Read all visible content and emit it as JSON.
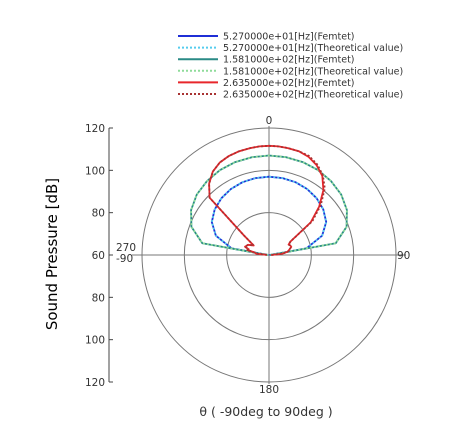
{
  "chart_data": {
    "type": "polar-line",
    "title": "",
    "ylabel": "Sound Pressure [dB]",
    "xlabel": "θ ( -90deg to 90deg )",
    "radial_range": [
      60,
      120
    ],
    "radial_ticks": [
      "120",
      "100",
      "80",
      "60",
      "80",
      "100",
      "120"
    ],
    "radial_circles": [
      80,
      100,
      120
    ],
    "angle_labels": {
      "top": "0",
      "right": "90",
      "bottom": "180",
      "left_top": "270",
      "left_bottom": "-90"
    },
    "grid": true,
    "legend_position": "top-right",
    "series": [
      {
        "name": "5.270000e+01[Hz](Femtet)",
        "color": "#1f2fd6",
        "style": "solid",
        "theta": [
          -90,
          -80,
          -70,
          -60,
          -50,
          -40,
          -30,
          -20,
          -10,
          0,
          10,
          20,
          30,
          40,
          50,
          60,
          70,
          80,
          90
        ],
        "r": [
          60.3,
          77.9,
          86.7,
          91.2,
          93.5,
          95.0,
          96.0,
          96.6,
          96.9,
          97.0,
          96.9,
          96.6,
          96.0,
          95.0,
          93.5,
          91.2,
          86.7,
          77.9,
          60.3
        ]
      },
      {
        "name": "5.270000e+01[Hz](Theoretical value)",
        "color": "#55ccee",
        "style": "dotted",
        "theta": [
          -90,
          -80,
          -70,
          -60,
          -50,
          -40,
          -30,
          -20,
          -10,
          0,
          10,
          20,
          30,
          40,
          50,
          60,
          70,
          80,
          90
        ],
        "r": [
          60.3,
          77.9,
          86.7,
          91.2,
          93.5,
          95.0,
          96.0,
          96.6,
          96.9,
          97.0,
          96.9,
          96.6,
          96.0,
          95.0,
          93.5,
          91.2,
          86.7,
          77.9,
          60.3
        ]
      },
      {
        "name": "1.581000e+02[Hz](Femtet)",
        "color": "#2a8a86",
        "style": "solid",
        "theta": [
          -90,
          -80,
          -70,
          -60,
          -50,
          -40,
          -30,
          -20,
          -10,
          0,
          10,
          20,
          30,
          40,
          50,
          60,
          70,
          80,
          90
        ],
        "r": [
          60.5,
          92.0,
          99.0,
          102.5,
          104.5,
          105.6,
          106.3,
          106.7,
          106.9,
          107.0,
          106.9,
          106.7,
          106.3,
          105.6,
          104.5,
          102.5,
          99.0,
          92.0,
          60.5
        ]
      },
      {
        "name": "1.581000e+02[Hz](Theoretical value)",
        "color": "#8fdc9a",
        "style": "dotted",
        "theta": [
          -90,
          -80,
          -70,
          -60,
          -50,
          -40,
          -30,
          -20,
          -10,
          0,
          10,
          20,
          30,
          40,
          50,
          60,
          70,
          80,
          90
        ],
        "r": [
          60.5,
          92.0,
          99.0,
          102.5,
          104.5,
          105.6,
          106.3,
          106.7,
          106.9,
          107.0,
          106.9,
          106.7,
          106.3,
          105.6,
          104.5,
          102.5,
          99.0,
          92.0,
          60.5
        ]
      },
      {
        "name": "2.635000e+02[Hz](Femtet)",
        "color": "#e8262b",
        "style": "solid",
        "theta": [
          -88,
          -84,
          -80,
          -77,
          -74,
          -71,
          -68,
          -64,
          -58,
          -52,
          -46,
          -40,
          -34,
          -28,
          -22,
          -16,
          -10,
          -5,
          0,
          5,
          10,
          16,
          22,
          28,
          34,
          40,
          46,
          52,
          58,
          62,
          66,
          70,
          75,
          80,
          85,
          89
        ],
        "r": [
          61.0,
          66.0,
          67.0,
          70.5,
          70.0,
          72.0,
          71.5,
          71.0,
          68.5,
          75.0,
          99.0,
          104.0,
          107.5,
          109.5,
          110.5,
          111.0,
          111.3,
          111.5,
          111.6,
          111.5,
          111.3,
          111.0,
          110.0,
          108.0,
          105.0,
          100.0,
          93.0,
          85.0,
          72.0,
          70.5,
          71.0,
          71.2,
          70.0,
          69.0,
          66.0,
          61.0
        ]
      },
      {
        "name": "2.635000e+02[Hz](Theoretical value)",
        "color": "#a83232",
        "style": "dotted",
        "theta": [
          -88,
          -84,
          -80,
          -77,
          -74,
          -71,
          -68,
          -64,
          -58,
          -52,
          -46,
          -40,
          -34,
          -28,
          -22,
          -16,
          -10,
          -5,
          0,
          5,
          10,
          16,
          22,
          28,
          34,
          40,
          46,
          52,
          58,
          62,
          66,
          70,
          75,
          80,
          85,
          89
        ],
        "r": [
          61.0,
          66.0,
          67.0,
          70.5,
          70.0,
          72.0,
          71.5,
          71.0,
          68.5,
          75.0,
          99.0,
          104.0,
          107.5,
          109.5,
          110.5,
          111.0,
          111.3,
          111.5,
          111.6,
          111.5,
          111.3,
          111.0,
          110.5,
          108.5,
          105.5,
          101.0,
          94.0,
          86.0,
          72.0,
          70.5,
          71.0,
          71.2,
          70.0,
          69.0,
          66.0,
          61.0
        ]
      }
    ]
  }
}
